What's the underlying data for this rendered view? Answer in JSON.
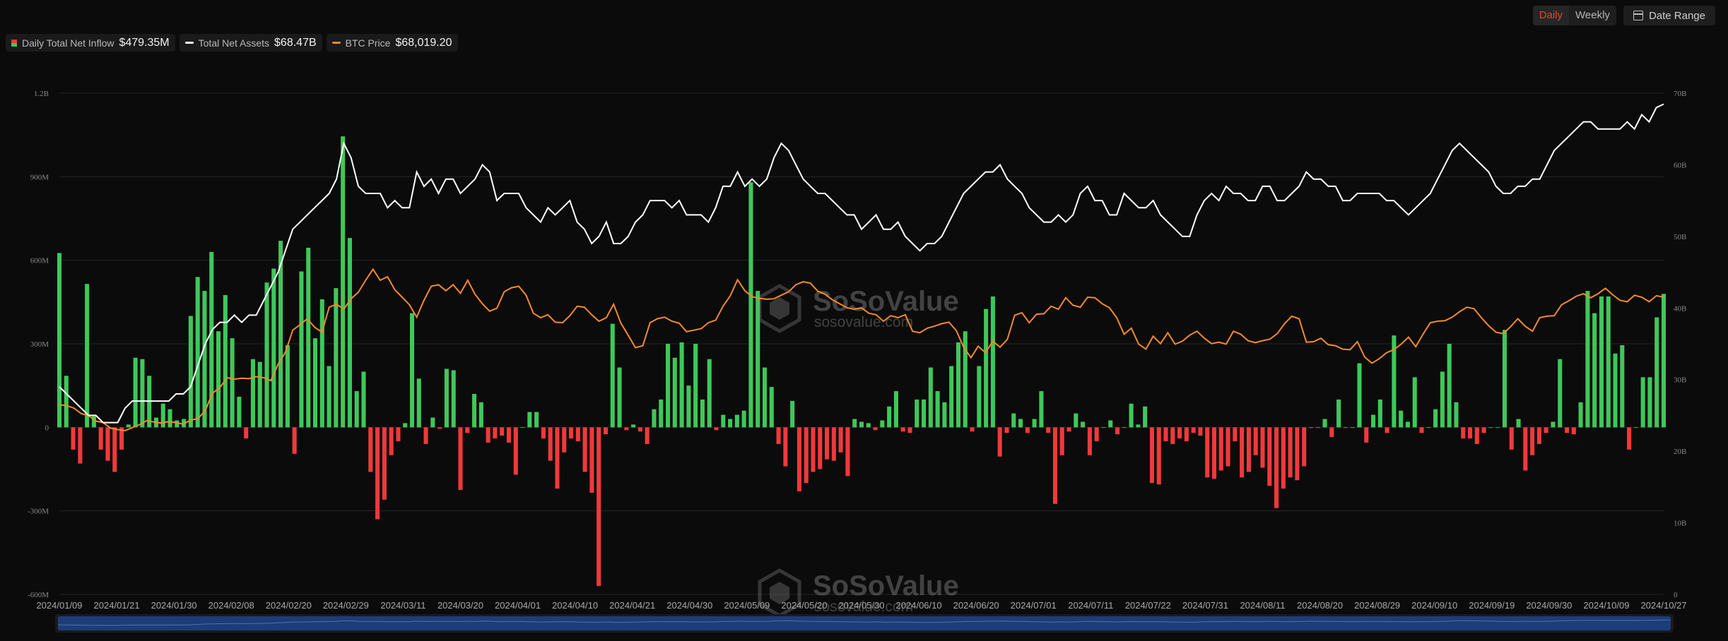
{
  "controls": {
    "daily_label": "Daily",
    "weekly_label": "Weekly",
    "date_range_label": "Date Range"
  },
  "legend": [
    {
      "label": "Daily Total Net Inflow",
      "value": "$479.35M",
      "icon": "red-green-bar-swatch"
    },
    {
      "label": "Total Net Assets",
      "value": "$68.47B",
      "color": "#ffffff"
    },
    {
      "label": "BTC Price",
      "value": "$68,019.20",
      "color": "#f28b2c"
    }
  ],
  "watermark": {
    "brand": "SoSoValue",
    "url": "sosovalue.com"
  },
  "colors": {
    "positive": "#3fc75a",
    "negative": "#f0393c",
    "assets": "#ffffff",
    "btc": "#f28b2c",
    "scrollbar": "#1d3d78"
  },
  "chart_data": {
    "type": "bar",
    "left_axis": {
      "ticks": [
        "1.2B",
        "900M",
        "600M",
        "300M",
        "0",
        "-300M",
        "-600M"
      ],
      "range": [
        -600,
        1200
      ],
      "unit": "M"
    },
    "right_axis": {
      "ticks": [
        "70B",
        "60B",
        "50B",
        "40B",
        "30B",
        "20B",
        "10B",
        "0"
      ],
      "range": [
        0,
        70
      ],
      "unit": "B"
    },
    "x_ticks": [
      "2024/01/09",
      "2024/01/21",
      "2024/01/30",
      "2024/02/08",
      "2024/02/20",
      "2024/02/29",
      "2024/03/11",
      "2024/03/20",
      "2024/04/01",
      "2024/04/10",
      "2024/04/21",
      "2024/04/30",
      "2024/05/09",
      "2024/05/20",
      "2024/05/30",
      "2024/06/10",
      "2024/06/20",
      "2024/07/01",
      "2024/07/11",
      "2024/07/22",
      "2024/07/31",
      "2024/08/11",
      "2024/08/20",
      "2024/08/29",
      "2024/09/10",
      "2024/09/19",
      "2024/09/30",
      "2024/10/09",
      "2024/10/27"
    ],
    "series": [
      {
        "name": "Daily Total Net Inflow",
        "kind": "bar",
        "axis": "left",
        "unit": "M",
        "values": [
          626,
          185,
          -80,
          -130,
          515,
          40,
          -80,
          -120,
          -160,
          -80,
          10,
          250,
          245,
          185,
          35,
          85,
          65,
          25,
          30,
          400,
          540,
          490,
          630,
          345,
          475,
          320,
          110,
          -40,
          245,
          235,
          520,
          570,
          670,
          295,
          -95,
          560,
          645,
          320,
          460,
          220,
          500,
          1045,
          680,
          130,
          200,
          -160,
          -330,
          -260,
          -100,
          -50,
          15,
          410,
          175,
          -60,
          35,
          -5,
          210,
          205,
          -225,
          -20,
          120,
          90,
          -55,
          -40,
          -30,
          -55,
          -170,
          0,
          55,
          55,
          -40,
          -120,
          -220,
          -90,
          -40,
          -50,
          -160,
          -235,
          -570,
          -25,
          372,
          215,
          -10,
          10,
          -15,
          -60,
          65,
          100,
          300,
          250,
          305,
          150,
          300,
          100,
          245,
          -10,
          45,
          30,
          45,
          60,
          880,
          490,
          215,
          145,
          -60,
          -140,
          95,
          -230,
          -200,
          -160,
          -150,
          -115,
          -120,
          -90,
          -175,
          30,
          20,
          15,
          -10,
          25,
          75,
          130,
          -15,
          -20,
          100,
          100,
          215,
          130,
          90,
          220,
          305,
          345,
          -15,
          220,
          425,
          470,
          -105,
          -20,
          50,
          30,
          -20,
          30,
          130,
          -20,
          -275,
          -100,
          -15,
          50,
          20,
          -100,
          -50,
          0,
          25,
          -25,
          0,
          85,
          10,
          75,
          -200,
          -205,
          -50,
          -60,
          -40,
          -50,
          -20,
          -30,
          -180,
          -185,
          -155,
          -140,
          -50,
          -180,
          -160,
          -100,
          -145,
          -210,
          -290,
          -220,
          -180,
          -190,
          -140,
          0,
          0,
          30,
          -35,
          100,
          0,
          0,
          230,
          -55,
          45,
          100,
          -20,
          330,
          60,
          20,
          180,
          -20,
          0,
          65,
          200,
          300,
          90,
          -40,
          -40,
          -60,
          -20,
          0,
          0,
          350,
          -80,
          30,
          -155,
          -100,
          -60,
          -20,
          20,
          245,
          -20,
          -25,
          90,
          490,
          410,
          470,
          470,
          265,
          295,
          -80,
          0,
          180,
          180,
          395,
          479.35
        ]
      },
      {
        "name": "Total Net Assets",
        "kind": "line",
        "axis": "right",
        "unit": "B",
        "values": [
          29,
          28,
          27,
          26,
          25,
          25,
          24,
          24,
          24,
          26,
          27,
          27,
          27,
          27,
          27,
          27,
          28,
          28,
          29,
          32,
          35,
          37,
          38,
          38,
          39,
          38,
          39,
          39,
          41,
          43,
          45,
          48,
          51,
          52,
          53,
          54,
          55,
          56,
          58,
          63,
          61,
          57,
          56,
          56,
          56,
          54,
          55,
          54,
          54,
          59,
          57,
          58,
          56,
          58,
          58,
          56,
          57,
          58,
          60,
          59,
          55,
          56,
          56,
          56,
          54,
          53,
          52,
          54,
          53,
          54,
          55,
          52,
          51,
          49,
          50,
          52,
          49,
          49,
          50,
          52,
          53,
          55,
          55,
          55,
          54,
          55,
          53,
          53,
          53,
          52,
          54,
          57,
          57,
          59,
          57,
          58,
          57,
          58,
          61,
          63,
          62,
          60,
          58,
          57,
          56,
          56,
          55,
          54,
          53,
          53,
          51,
          52,
          53,
          51,
          51,
          52,
          50,
          49,
          48,
          49,
          49,
          50,
          52,
          54,
          56,
          57,
          58,
          59,
          59,
          60,
          58,
          57,
          56,
          54,
          53,
          52,
          52,
          53,
          52,
          53,
          56,
          57,
          55,
          55,
          53,
          53,
          56,
          55,
          54,
          54,
          55,
          53,
          52,
          51,
          50,
          50,
          53,
          55,
          56,
          55,
          57,
          56,
          56,
          55,
          55,
          57,
          57,
          55,
          55,
          56,
          57,
          59,
          58,
          58,
          57,
          57,
          55,
          55,
          56,
          56,
          56,
          56,
          55,
          55,
          54,
          53,
          54,
          55,
          56,
          58,
          60,
          62,
          63,
          62,
          61,
          60,
          59,
          57,
          56,
          56,
          57,
          57,
          58,
          58,
          60,
          62,
          63,
          64,
          65,
          66,
          66,
          65,
          65,
          65,
          65,
          66,
          65,
          67,
          66,
          68,
          68.47
        ]
      },
      {
        "name": "BTC Price",
        "kind": "line",
        "axis": "right",
        "scale": "relative",
        "values": [
          46500,
          46300,
          45800,
          44700,
          44300,
          43200,
          42900,
          41800,
          41500,
          41300,
          41900,
          42500,
          43300,
          43000,
          42800,
          43100,
          42900,
          42600,
          43400,
          43700,
          45300,
          48800,
          49900,
          51900,
          51600,
          51800,
          51700,
          52100,
          51900,
          51300,
          54600,
          57000,
          61400,
          62500,
          63700,
          62000,
          61000,
          66000,
          66600,
          65600,
          67700,
          69000,
          71400,
          73600,
          71400,
          72100,
          69500,
          68000,
          66500,
          64000,
          67400,
          70200,
          70500,
          69300,
          70500,
          68800,
          71400,
          68600,
          66700,
          65200,
          65800,
          69100,
          69900,
          70200,
          68400,
          64800,
          63900,
          64500,
          63000,
          62900,
          64300,
          66200,
          66000,
          64500,
          63200,
          63900,
          66600,
          62800,
          60400,
          57900,
          58300,
          62900,
          63700,
          64000,
          63200,
          62800,
          61100,
          61400,
          61700,
          62900,
          63400,
          66200,
          68300,
          71500,
          69300,
          68100,
          67800,
          67600,
          67700,
          68400,
          69100,
          70500,
          71100,
          70800,
          69200,
          68600,
          67500,
          66700,
          65900,
          65600,
          65900,
          64800,
          64500,
          63200,
          64300,
          63900,
          64500,
          61200,
          60900,
          61800,
          62200,
          62700,
          63000,
          61300,
          58000,
          55900,
          58200,
          56900,
          59200,
          58000,
          59600,
          64400,
          64900,
          62900,
          64600,
          64700,
          66200,
          65600,
          67900,
          66400,
          66000,
          68000,
          67900,
          66700,
          65900,
          63900,
          60600,
          61800,
          58600,
          57600,
          60200,
          58700,
          60900,
          58600,
          59200,
          60400,
          61200,
          59800,
          58700,
          59000,
          58600,
          61200,
          60600,
          59300,
          58900,
          59300,
          59600,
          60700,
          62700,
          64200,
          63700,
          59000,
          59100,
          59800,
          58500,
          58300,
          57600,
          57500,
          59100,
          56000,
          54800,
          55700,
          56900,
          57500,
          58600,
          60000,
          58100,
          60600,
          62900,
          63200,
          63300,
          64000,
          65100,
          66000,
          65700,
          63900,
          62300,
          61000,
          60700,
          62100,
          63700,
          62200,
          61200,
          63900,
          64200,
          64300,
          66500,
          67300,
          68200,
          68700,
          67900,
          68700,
          69800,
          68500,
          67400,
          67100,
          68400,
          68000,
          67100,
          68300,
          68019.2
        ]
      }
    ]
  }
}
